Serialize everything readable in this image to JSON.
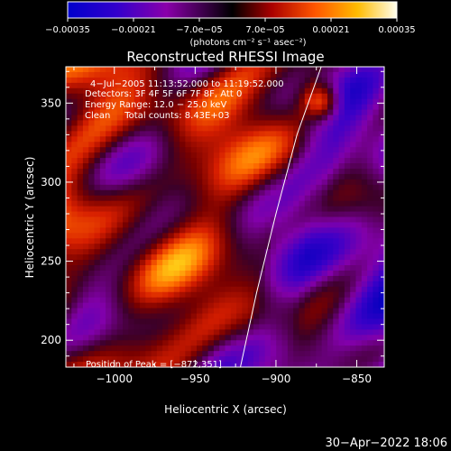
{
  "chart_data": {
    "type": "heatmap",
    "title": "Reconstructed RHESSI Image",
    "xlabel": "Heliocentric X (arcsec)",
    "ylabel": "Heliocentric Y (arcsec)",
    "xlim": [
      -1030,
      -833
    ],
    "ylim": [
      183,
      373
    ],
    "xticks": [
      -1000,
      -950,
      -900,
      -850
    ],
    "yticks": [
      200,
      250,
      300,
      350
    ],
    "xtick_labels": [
      "−1000",
      "−950",
      "−900",
      "−850"
    ],
    "ytick_labels": [
      "200",
      "250",
      "300",
      "350"
    ],
    "colorbar": {
      "range": [
        -0.00035,
        0.00035
      ],
      "ticks": [
        -0.00035,
        -0.00021,
        -7e-05,
        7e-05,
        0.00021,
        0.00035
      ],
      "tick_labels": [
        "−0.00035",
        "−0.00021",
        "−7.0e−05",
        "7.0e−05",
        "0.00021",
        "0.00035"
      ],
      "unit_label": "(photons cm⁻² s⁻¹ asec⁻²)",
      "colors": [
        "#0000cc",
        "#5500bb",
        "#a000a0",
        "#000000",
        "#cc1100",
        "#ff7700",
        "#ffcc00",
        "#ffffdd"
      ]
    },
    "annotations": [
      "4−Jul−2005 11:13:52.000 to 11:19:52.000",
      "Detectors: 3F 4F 5F 6F 7F 8F, Att 0",
      "Energy Range: 12.0 − 25.0 keV",
      "Clean     Total counts: 8.43E+03",
      "Position of Peak = [−872,351]"
    ],
    "peak": [
      -872,
      351
    ],
    "limb_curve": [
      [
        -922,
        183
      ],
      [
        -912,
        230
      ],
      [
        -900,
        280
      ],
      [
        -887,
        330
      ],
      [
        -872,
        373
      ]
    ]
  },
  "footer": {
    "timestamp": "30−Apr−2022 18:06"
  }
}
